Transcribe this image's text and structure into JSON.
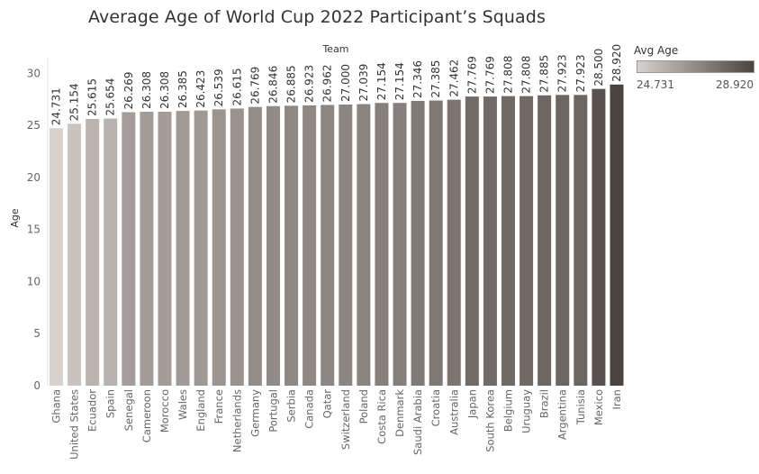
{
  "chart_data": {
    "type": "bar",
    "title": "Average Age of World Cup 2022 Participant’s Squads",
    "column_header": "Team",
    "xlabel": "",
    "ylabel": "Age",
    "ylim": [
      0,
      30
    ],
    "yticks": [
      0,
      5,
      10,
      15,
      20,
      25,
      30
    ],
    "grid": false,
    "legend": {
      "title": "Avg Age",
      "min_label": "24.731",
      "max_label": "28.920",
      "min": 24.731,
      "max": 28.92,
      "color_low": "#d9d2cc",
      "color_high": "#4b4340",
      "placement": "top-right"
    },
    "categories": [
      "Ghana",
      "United States",
      "Ecuador",
      "Spain",
      "Senegal",
      "Cameroon",
      "Morocco",
      "Wales",
      "England",
      "France",
      "Netherlands",
      "Germany",
      "Portugal",
      "Serbia",
      "Canada",
      "Qatar",
      "Switzerland",
      "Poland",
      "Costa Rica",
      "Denmark",
      "Saudi Arabia",
      "Croatia",
      "Australia",
      "Japan",
      "South Korea",
      "Belgium",
      "Uruguay",
      "Brazil",
      "Argentina",
      "Tunisia",
      "Mexico",
      "Iran"
    ],
    "values": [
      24.731,
      25.154,
      25.615,
      25.654,
      26.269,
      26.308,
      26.308,
      26.385,
      26.423,
      26.539,
      26.615,
      26.769,
      26.846,
      26.885,
      26.923,
      26.962,
      27.0,
      27.039,
      27.154,
      27.154,
      27.346,
      27.385,
      27.462,
      27.769,
      27.769,
      27.808,
      27.808,
      27.885,
      27.923,
      27.923,
      28.5,
      28.92
    ],
    "value_labels": [
      "24.731",
      "25.154",
      "25.615",
      "25.654",
      "26.269",
      "26.308",
      "26.308",
      "26.385",
      "26.423",
      "26.539",
      "26.615",
      "26.769",
      "26.846",
      "26.885",
      "26.923",
      "26.962",
      "27.000",
      "27.039",
      "27.154",
      "27.154",
      "27.346",
      "27.385",
      "27.462",
      "27.769",
      "27.769",
      "27.808",
      "27.808",
      "27.885",
      "27.923",
      "27.923",
      "28.500",
      "28.920"
    ]
  }
}
